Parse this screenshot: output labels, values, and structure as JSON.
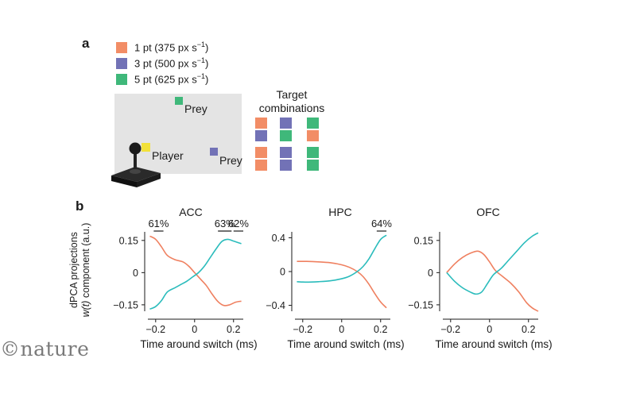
{
  "panel_a": {
    "letter": "a",
    "legend": [
      {
        "label": "1 pt (375 px s",
        "sup": "−1",
        "close": ")",
        "color": "#f28d66"
      },
      {
        "label": "3 pt (500 px s",
        "sup": "−1",
        "close": ")",
        "color": "#7272b6"
      },
      {
        "label": "5 pt (625 px s",
        "sup": "−1",
        "close": ")",
        "color": "#3fb87a"
      }
    ],
    "prey1_label": "Prey",
    "prey2_label": "Prey",
    "player_label": "Player",
    "combinations_title_1": "Target",
    "combinations_title_2": "combinations",
    "combinations": [
      [
        "#f28d66",
        "#7272b6",
        "#3fb87a"
      ],
      [
        "#7272b6",
        "#3fb87a",
        "#f28d66"
      ],
      [
        "#f28d66",
        "#7272b6",
        "#3fb87a"
      ],
      [
        "#f28d66",
        "#7272b6",
        "#3fb87a"
      ]
    ],
    "colors": {
      "arena": "#e4e4e4",
      "player": "#f2e13a",
      "joystick": "#222222"
    }
  },
  "panel_b": {
    "letter": "b",
    "ylabel_line1": "dPCA projections",
    "ylabel_line2_italic": "w(t)",
    "ylabel_line2_rest": " component (a.u.)"
  },
  "watermark": "©nature",
  "chart_data": [
    {
      "type": "line",
      "title": "ACC",
      "xlabel": "Time around switch (ms)",
      "ylabel": "dPCA projections w(t) component (a.u.)",
      "xlim": [
        -0.24,
        0.25
      ],
      "ylim": [
        -0.18,
        0.19
      ],
      "xticks": [
        -0.2,
        0,
        0.2
      ],
      "xticklabels": [
        "−0.2",
        "0",
        "0.2"
      ],
      "yticks": [
        0.15,
        0,
        -0.15
      ],
      "yticklabels": [
        "0.15",
        "0",
        "−0.15"
      ],
      "annotations": [
        {
          "text": "61%",
          "x_range": [
            -0.21,
            -0.16
          ]
        },
        {
          "text": "63%",
          "x_range": [
            0.12,
            0.19
          ]
        },
        {
          "text": "62%",
          "x_range": [
            0.2,
            0.25
          ]
        }
      ],
      "series": [
        {
          "color": "#ef8060",
          "x": [
            -0.23,
            -0.2,
            -0.17,
            -0.14,
            -0.1,
            -0.06,
            -0.03,
            0.0,
            0.03,
            0.06,
            0.09,
            0.12,
            0.15,
            0.18,
            0.21,
            0.24
          ],
          "y": [
            0.17,
            0.155,
            0.12,
            0.08,
            0.06,
            0.05,
            0.03,
            0.0,
            -0.03,
            -0.06,
            -0.1,
            -0.135,
            -0.153,
            -0.15,
            -0.138,
            -0.133
          ]
        },
        {
          "color": "#2bbcbc",
          "x": [
            -0.23,
            -0.2,
            -0.17,
            -0.14,
            -0.1,
            -0.07,
            -0.04,
            -0.01,
            0.02,
            0.05,
            0.08,
            0.11,
            0.14,
            0.17,
            0.2,
            0.24
          ],
          "y": [
            -0.17,
            -0.158,
            -0.13,
            -0.09,
            -0.07,
            -0.055,
            -0.04,
            -0.02,
            0.0,
            0.03,
            0.07,
            0.11,
            0.145,
            0.155,
            0.147,
            0.135
          ]
        }
      ]
    },
    {
      "type": "line",
      "title": "HPC",
      "xlabel": "Time around switch (ms)",
      "xlim": [
        -0.24,
        0.25
      ],
      "ylim": [
        -0.47,
        0.47
      ],
      "xticks": [
        -0.2,
        0,
        0.2
      ],
      "xticklabels": [
        "−0.2",
        "0",
        "0.2"
      ],
      "yticks": [
        0.4,
        0,
        -0.4
      ],
      "yticklabels": [
        "0.4",
        "0",
        "−0.4"
      ],
      "annotations": [
        {
          "text": "64%",
          "x_range": [
            0.18,
            0.23
          ]
        }
      ],
      "series": [
        {
          "color": "#ef8060",
          "x": [
            -0.23,
            -0.18,
            -0.12,
            -0.06,
            0.0,
            0.04,
            0.08,
            0.11,
            0.14,
            0.17,
            0.2,
            0.23
          ],
          "y": [
            0.12,
            0.12,
            0.115,
            0.105,
            0.08,
            0.05,
            0.0,
            -0.06,
            -0.15,
            -0.26,
            -0.36,
            -0.43
          ]
        },
        {
          "color": "#2bbcbc",
          "x": [
            -0.23,
            -0.18,
            -0.12,
            -0.06,
            0.0,
            0.04,
            0.08,
            0.11,
            0.14,
            0.17,
            0.2,
            0.23
          ],
          "y": [
            -0.12,
            -0.125,
            -0.12,
            -0.11,
            -0.085,
            -0.055,
            0.0,
            0.06,
            0.15,
            0.27,
            0.38,
            0.43
          ]
        }
      ]
    },
    {
      "type": "line",
      "title": "OFC",
      "xlabel": "Time around switch (ms)",
      "xlim": [
        -0.24,
        0.25
      ],
      "ylim": [
        -0.18,
        0.19
      ],
      "xticks": [
        -0.2,
        0,
        0.2
      ],
      "xticklabels": [
        "−0.2",
        "0",
        "0.2"
      ],
      "yticks": [
        0.15,
        0,
        -0.15
      ],
      "yticklabels": [
        "0.15",
        "0",
        "−0.15"
      ],
      "annotations": [],
      "series": [
        {
          "color": "#ef8060",
          "x": [
            -0.22,
            -0.18,
            -0.14,
            -0.1,
            -0.06,
            -0.03,
            0.0,
            0.03,
            0.07,
            0.11,
            0.15,
            0.19,
            0.22,
            0.25
          ],
          "y": [
            0.0,
            0.04,
            0.07,
            0.09,
            0.1,
            0.085,
            0.05,
            0.01,
            -0.02,
            -0.05,
            -0.09,
            -0.14,
            -0.165,
            -0.18
          ]
        },
        {
          "color": "#2bbcbc",
          "x": [
            -0.22,
            -0.18,
            -0.14,
            -0.1,
            -0.07,
            -0.04,
            -0.01,
            0.02,
            0.06,
            0.1,
            0.14,
            0.18,
            0.22,
            0.25
          ],
          "y": [
            0.0,
            -0.04,
            -0.07,
            -0.09,
            -0.1,
            -0.09,
            -0.05,
            -0.01,
            0.02,
            0.06,
            0.1,
            0.14,
            0.17,
            0.185
          ]
        }
      ]
    }
  ]
}
